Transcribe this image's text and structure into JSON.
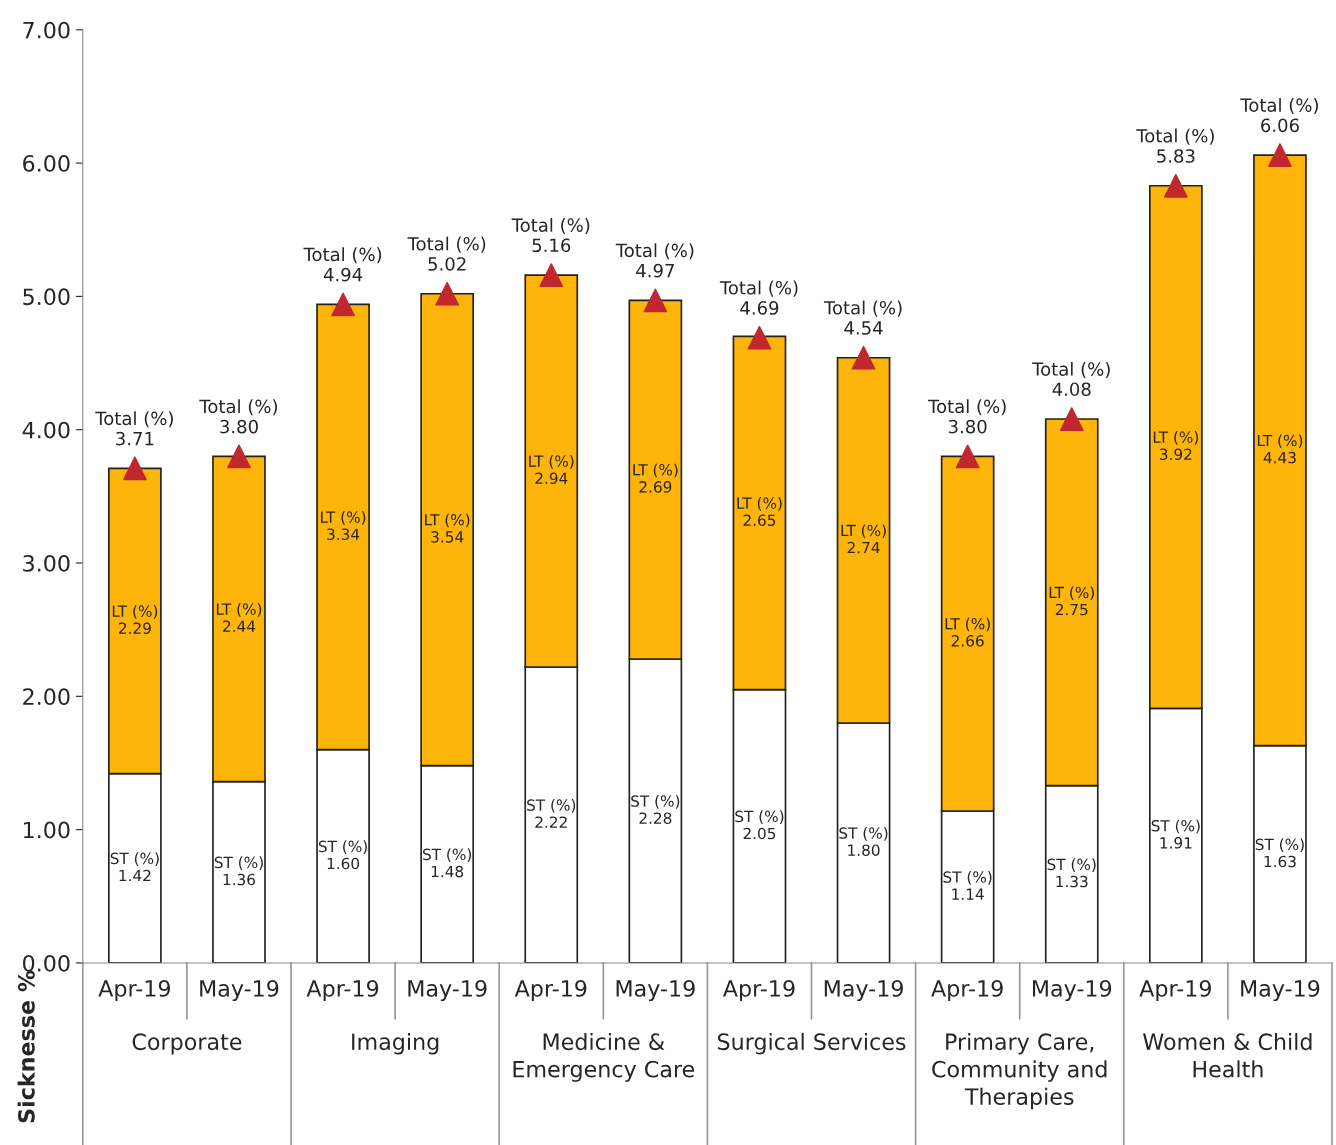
{
  "chart_data": {
    "type": "bar",
    "stacked": true,
    "ylabel": "Sicknesse %",
    "categories": [
      "Apr-19",
      "May-19",
      "Apr-19",
      "May-19",
      "Apr-19",
      "May-19",
      "Apr-19",
      "May-19",
      "Apr-19",
      "May-19",
      "Apr-19",
      "May-19"
    ],
    "annotations": [
      "Corporate",
      "Imaging",
      "Medicine & Emergency Care",
      "Surgical Services",
      "Primary Care, Community and Therapies",
      "Women & Child Health"
    ],
    "series": [
      {
        "name": "ST (%)",
        "color": "#ffffff",
        "values": [
          1.42,
          1.36,
          1.6,
          1.48,
          2.22,
          2.28,
          2.05,
          1.8,
          1.14,
          1.33,
          1.91,
          1.63
        ],
        "value_labels": [
          "1.42",
          "1.36",
          "1.60",
          "1.48",
          "2.22",
          "2.28",
          "2.05",
          "1.80",
          "1.14",
          "1.33",
          "1.91",
          "1.63"
        ]
      },
      {
        "name": "LT (%)",
        "color": "#ffb40a",
        "values": [
          2.29,
          2.44,
          3.34,
          3.54,
          2.94,
          2.69,
          2.65,
          2.74,
          2.66,
          2.75,
          3.92,
          4.43
        ],
        "value_labels": [
          "2.29",
          "2.44",
          "3.34",
          "3.54",
          "2.94",
          "2.69",
          "2.65",
          "2.74",
          "2.66",
          "2.75",
          "3.92",
          "4.43"
        ]
      },
      {
        "name": "Total (%)",
        "type": "scatter",
        "marker": "triangle",
        "color": "#c0282d",
        "values": [
          3.71,
          3.8,
          4.94,
          5.02,
          5.16,
          4.97,
          4.69,
          4.54,
          3.8,
          4.08,
          5.83,
          6.06
        ],
        "value_labels": [
          "3.71",
          "3.80",
          "4.94",
          "5.02",
          "5.16",
          "4.97",
          "4.69",
          "4.54",
          "3.80",
          "4.08",
          "5.83",
          "6.06"
        ]
      }
    ],
    "ylim": [
      0,
      7
    ],
    "yticks": [
      {
        "value": 0,
        "label": "0.00"
      },
      {
        "value": 1,
        "label": "1.00"
      },
      {
        "value": 2,
        "label": "2.00"
      },
      {
        "value": 3,
        "label": "3.00"
      },
      {
        "value": 4,
        "label": "4.00"
      },
      {
        "value": 5,
        "label": "5.00"
      },
      {
        "value": 6,
        "label": "6.00"
      },
      {
        "value": 7,
        "label": "7.00"
      }
    ],
    "grid": false,
    "legend": false
  }
}
